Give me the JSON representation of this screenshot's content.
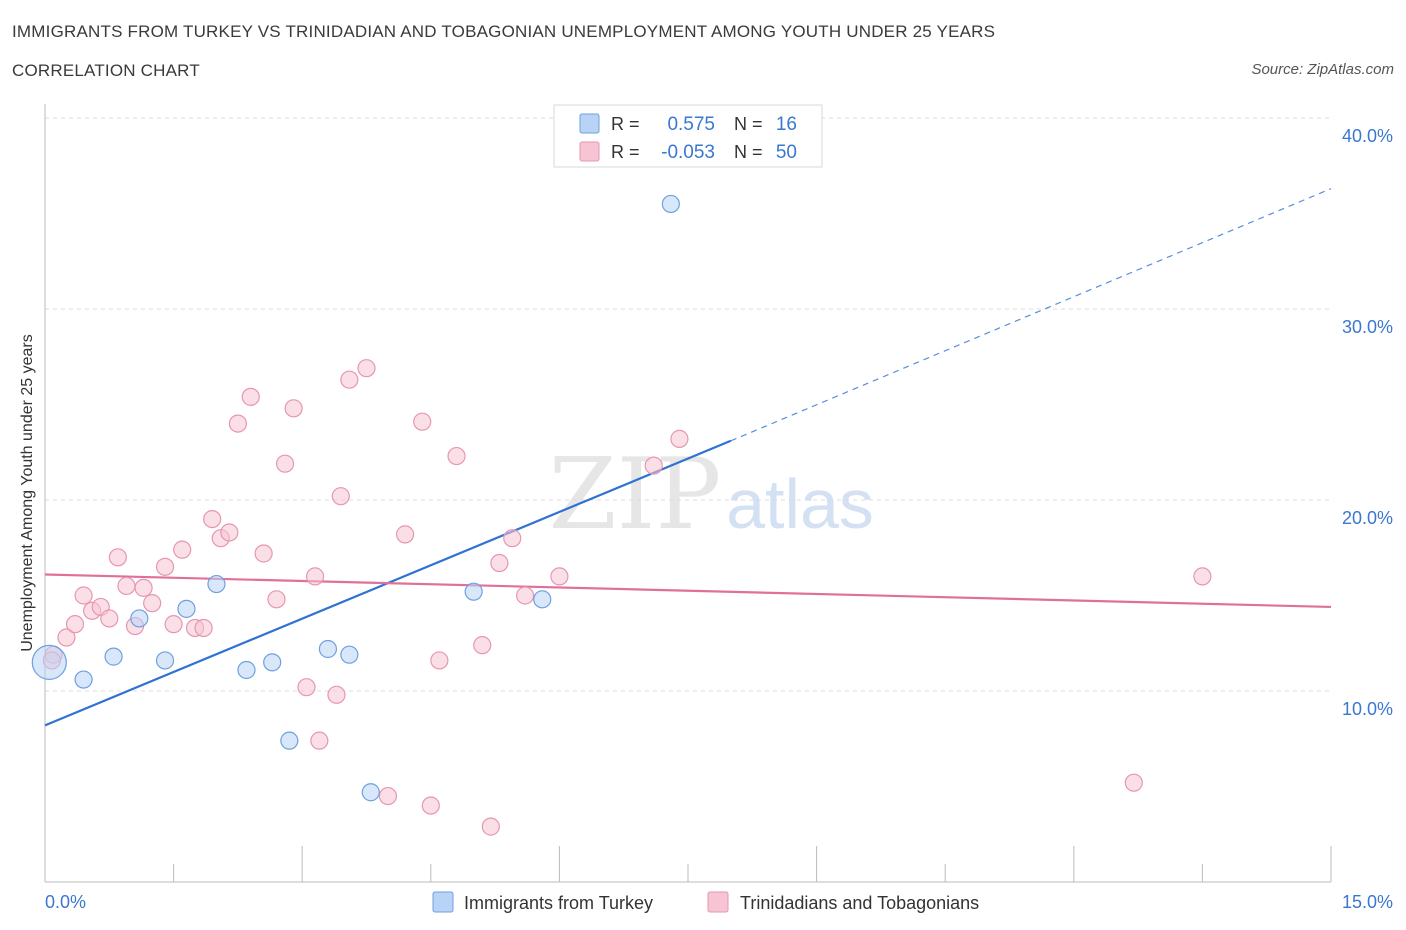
{
  "title": "IMMIGRANTS FROM TURKEY VS TRINIDADIAN AND TOBAGONIAN UNEMPLOYMENT AMONG YOUTH UNDER 25 YEARS",
  "subtitle": "CORRELATION CHART",
  "source": "Source: ZipAtlas.com",
  "watermark": {
    "zip": "ZIP",
    "atlas": "atlas"
  },
  "colors": {
    "blue_fill": "#b8d3f5",
    "blue_stroke": "#6fa0e0",
    "blue_line": "#2e72d2",
    "pink_fill": "#f7c4d4",
    "pink_stroke": "#e796b2",
    "pink_line": "#e0709a",
    "value_text": "#3a78d0",
    "grid": "#dcdcdc",
    "axis": "#bbbbbb"
  },
  "stats": {
    "r_label": "R =",
    "n_label": "N =",
    "rows": [
      {
        "r": "0.575",
        "n": "16"
      },
      {
        "r": "-0.053",
        "n": "50"
      }
    ]
  },
  "chart_data": {
    "type": "scatter",
    "title": "IMMIGRANTS FROM TURKEY VS TRINIDADIAN AND TOBAGONIAN UNEMPLOYMENT AMONG YOUTH UNDER 25 YEARS",
    "xlabel": "",
    "ylabel": "Unemployment Among Youth under 25 years",
    "xlim": [
      0,
      15
    ],
    "ylim": [
      0,
      40
    ],
    "x_tick_labels": [
      "0.0%",
      "15.0%"
    ],
    "y_ticks": [
      10,
      20,
      30,
      40
    ],
    "y_tick_labels": [
      "10.0%",
      "20.0%",
      "30.0%",
      "40.0%"
    ],
    "grid": true,
    "legend_position": "bottom-center",
    "series": [
      {
        "name": "Immigrants from Turkey",
        "color": "blue",
        "trend": {
          "x0": 0,
          "y0": 8.2,
          "x1": 8.0,
          "y1": 23.1,
          "dash_to_x": 15,
          "dash_to_y": 36.3
        },
        "points": [
          [
            0.05,
            11.5
          ],
          [
            0.45,
            10.6
          ],
          [
            0.8,
            11.8
          ],
          [
            1.1,
            13.8
          ],
          [
            1.4,
            11.6
          ],
          [
            2.0,
            15.6
          ],
          [
            1.65,
            14.3
          ],
          [
            2.35,
            11.1
          ],
          [
            2.65,
            11.5
          ],
          [
            2.85,
            7.4
          ],
          [
            3.3,
            12.2
          ],
          [
            3.55,
            11.9
          ],
          [
            3.8,
            4.7
          ],
          [
            5.0,
            15.2
          ],
          [
            5.8,
            14.8
          ],
          [
            7.3,
            35.5
          ]
        ]
      },
      {
        "name": "Trinidadians and Tobagonians",
        "color": "pink",
        "trend": {
          "x0": 0,
          "y0": 16.1,
          "x1": 15,
          "y1": 14.4
        },
        "points": [
          [
            0.1,
            11.9
          ],
          [
            0.25,
            12.8
          ],
          [
            0.35,
            13.5
          ],
          [
            0.45,
            15.0
          ],
          [
            0.55,
            14.2
          ],
          [
            0.65,
            14.4
          ],
          [
            0.75,
            13.8
          ],
          [
            0.85,
            17.0
          ],
          [
            0.95,
            15.5
          ],
          [
            1.05,
            13.4
          ],
          [
            1.15,
            15.4
          ],
          [
            1.25,
            14.6
          ],
          [
            1.4,
            16.5
          ],
          [
            1.5,
            13.5
          ],
          [
            1.6,
            17.4
          ],
          [
            1.75,
            13.3
          ],
          [
            1.85,
            13.3
          ],
          [
            1.95,
            19.0
          ],
          [
            2.05,
            18.0
          ],
          [
            2.15,
            18.3
          ],
          [
            2.25,
            24.0
          ],
          [
            2.4,
            25.4
          ],
          [
            2.55,
            17.2
          ],
          [
            2.7,
            14.8
          ],
          [
            2.8,
            21.9
          ],
          [
            2.9,
            24.8
          ],
          [
            3.05,
            10.2
          ],
          [
            3.15,
            16.0
          ],
          [
            3.2,
            7.4
          ],
          [
            3.4,
            9.8
          ],
          [
            3.45,
            20.2
          ],
          [
            3.55,
            26.3
          ],
          [
            3.75,
            26.9
          ],
          [
            4.0,
            4.5
          ],
          [
            4.2,
            18.2
          ],
          [
            4.4,
            24.1
          ],
          [
            4.5,
            4.0
          ],
          [
            4.6,
            11.6
          ],
          [
            4.8,
            22.3
          ],
          [
            5.1,
            12.4
          ],
          [
            5.2,
            2.9
          ],
          [
            5.3,
            16.7
          ],
          [
            5.45,
            18.0
          ],
          [
            5.6,
            15.0
          ],
          [
            6.0,
            16.0
          ],
          [
            7.1,
            21.8
          ],
          [
            7.4,
            23.2
          ],
          [
            12.7,
            5.2
          ],
          [
            13.5,
            16.0
          ],
          [
            0.08,
            11.6
          ]
        ]
      }
    ]
  }
}
